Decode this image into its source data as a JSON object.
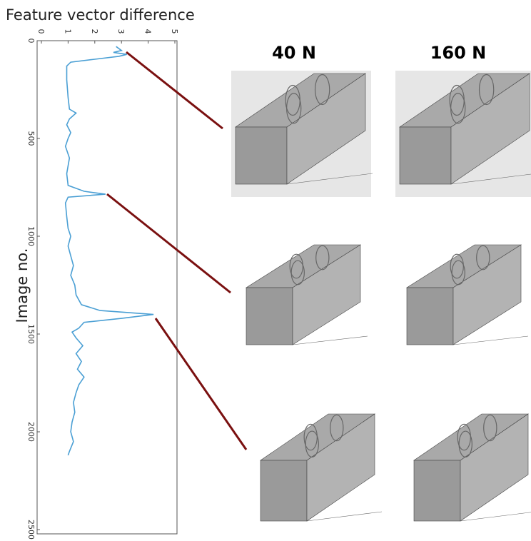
{
  "chart_data": {
    "type": "line",
    "orientation": "vertical",
    "y_label": "Feature vector difference",
    "x_label": "Image no.",
    "x": [
      30,
      50,
      60,
      70,
      80,
      95,
      110,
      130,
      200,
      290,
      350,
      370,
      400,
      430,
      470,
      500,
      540,
      600,
      680,
      740,
      770,
      785,
      800,
      830,
      900,
      960,
      1000,
      1050,
      1100,
      1150,
      1200,
      1250,
      1300,
      1350,
      1380,
      1400,
      1420,
      1440,
      1470,
      1490,
      1520,
      1560,
      1600,
      1640,
      1680,
      1720,
      1760,
      1800,
      1850,
      1900,
      1950,
      2000,
      2050,
      2100,
      2120
    ],
    "series": [
      {
        "color": "#4a9fd4",
        "values": [
          2.8,
          3.0,
          2.7,
          3.2,
          2.9,
          2.0,
          1.1,
          0.95,
          0.95,
          1.0,
          1.05,
          1.3,
          1.05,
          0.95,
          1.1,
          1.0,
          0.9,
          1.05,
          0.95,
          1.0,
          1.6,
          2.4,
          1.0,
          0.9,
          0.95,
          1.0,
          1.1,
          1.0,
          1.1,
          1.2,
          1.1,
          1.25,
          1.3,
          1.5,
          2.2,
          4.2,
          3.0,
          1.6,
          1.4,
          1.15,
          1.3,
          1.55,
          1.3,
          1.5,
          1.35,
          1.6,
          1.4,
          1.3,
          1.2,
          1.25,
          1.15,
          1.1,
          1.2,
          1.05,
          1.0
        ]
      }
    ],
    "xlim": [
      0,
      2500
    ],
    "xticks": [
      0,
      500,
      1000,
      1500,
      2000,
      2500
    ],
    "ylim": [
      0,
      5
    ],
    "yticks": [
      0,
      1,
      2,
      3,
      4,
      5
    ]
  },
  "panels": {
    "columns": [
      "40 N",
      "160 N"
    ]
  }
}
